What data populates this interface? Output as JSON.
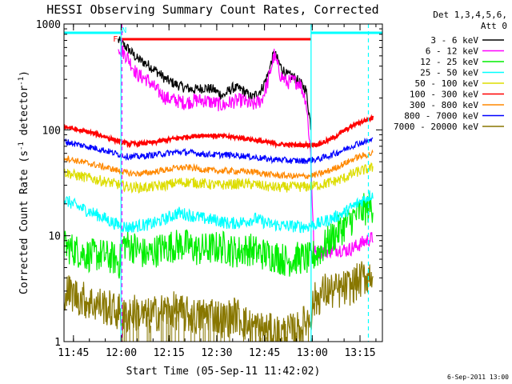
{
  "chart_data": {
    "type": "line",
    "title": "HESSI Observing Summary Count Rates, Corrected",
    "xlabel": "Start Time (05-Sep-11 11:42:02)",
    "ylabel_main": "Corrected Count Rate (s",
    "ylabel_sup1": "-1",
    "ylabel_mid": " detector",
    "ylabel_sup2": "-1",
    "ylabel_end": ")",
    "y_scale": "log",
    "ylim": [
      1,
      1000
    ],
    "y_ticks": [
      {
        "value": 1,
        "label": "1"
      },
      {
        "value": 10,
        "label": "10"
      },
      {
        "value": 100,
        "label": "100"
      },
      {
        "value": 1000,
        "label": "1000"
      }
    ],
    "x_unit": "minutes after 11:42:02",
    "xlim": [
      0,
      100
    ],
    "x_ticks": [
      {
        "value": 2.97,
        "label": "11:45"
      },
      {
        "value": 17.97,
        "label": "12:00"
      },
      {
        "value": 32.97,
        "label": "12:15"
      },
      {
        "value": 47.97,
        "label": "12:30"
      },
      {
        "value": 62.97,
        "label": "12:45"
      },
      {
        "value": 77.97,
        "label": "13:00"
      },
      {
        "value": 92.97,
        "label": "13:15"
      }
    ],
    "legend_header": [
      "Det 1,3,4,5,6,",
      "Att 0"
    ],
    "legend_position": "right",
    "series": [
      {
        "name": "3 - 6 keV",
        "color": "#000000",
        "x": [
          17,
          20,
          23,
          26,
          29,
          32,
          35,
          38,
          41,
          44,
          47,
          50,
          53,
          56,
          59,
          62,
          64,
          66,
          68,
          70,
          72,
          74,
          76,
          77.5
        ],
        "y": [
          700,
          590,
          470,
          420,
          360,
          300,
          270,
          250,
          240,
          250,
          240,
          210,
          250,
          240,
          200,
          240,
          330,
          540,
          400,
          330,
          320,
          280,
          240,
          110
        ]
      },
      {
        "name": "6 - 12 keV",
        "color": "#ff00ff",
        "x": [
          17,
          20,
          23,
          26,
          29,
          32,
          35,
          38,
          41,
          44,
          47,
          50,
          53,
          56,
          59,
          62,
          64,
          66,
          68,
          70,
          72,
          74,
          76,
          77.5,
          78.5,
          80,
          83,
          86,
          89,
          92,
          95,
          97
        ],
        "y": [
          620,
          480,
          330,
          300,
          240,
          200,
          190,
          180,
          190,
          190,
          180,
          170,
          185,
          190,
          170,
          190,
          280,
          510,
          330,
          280,
          290,
          280,
          190,
          60,
          7,
          7,
          7.2,
          7.5,
          7.3,
          8,
          9,
          9.5
        ]
      },
      {
        "name": "12 - 25 keV",
        "color": "#00ee00",
        "x": [
          0,
          4,
          8,
          12,
          16,
          17.5,
          18.5,
          22,
          26,
          30,
          34,
          38,
          42,
          46,
          50,
          54,
          58,
          62,
          66,
          70,
          74,
          77.5,
          78.5,
          81,
          84,
          87,
          90,
          93,
          97
        ],
        "y": [
          8,
          7.2,
          6.5,
          6.6,
          6,
          5.5,
          8.5,
          7.8,
          6.5,
          7.5,
          8,
          8.2,
          7.3,
          7.6,
          7.8,
          7,
          7.5,
          6.8,
          6.5,
          5.8,
          6.2,
          6,
          6.5,
          7.5,
          9.5,
          11.5,
          14,
          17,
          19
        ]
      },
      {
        "name": "25 - 50 keV",
        "color": "#00ffff",
        "x": [
          0,
          4,
          8,
          12,
          16,
          20,
          24,
          28,
          32,
          36,
          40,
          44,
          48,
          52,
          56,
          60,
          64,
          68,
          72,
          76,
          80,
          84,
          88,
          92,
          97
        ],
        "y": [
          22,
          19,
          17,
          15,
          13,
          12,
          12.5,
          13,
          14.5,
          16.5,
          15.5,
          14.5,
          14,
          13,
          13.5,
          14.5,
          13,
          12.5,
          12.3,
          12.2,
          13,
          14.5,
          16.5,
          20,
          25
        ]
      },
      {
        "name": "50 - 100 keV",
        "color": "#dddd00",
        "x": [
          0,
          4,
          8,
          12,
          16,
          20,
          24,
          28,
          32,
          36,
          40,
          44,
          48,
          52,
          56,
          60,
          64,
          68,
          72,
          76,
          80,
          84,
          88,
          92,
          97
        ],
        "y": [
          40,
          37,
          35,
          33,
          31,
          29,
          28.5,
          29,
          30,
          32,
          32,
          31,
          30,
          30.5,
          31,
          30.5,
          29,
          28.5,
          29,
          29,
          30,
          32,
          35,
          40,
          44
        ]
      },
      {
        "name": "100 - 300 keV",
        "color": "#ff0000",
        "x": [
          0,
          4,
          8,
          12,
          16,
          20,
          24,
          28,
          32,
          36,
          40,
          44,
          48,
          52,
          56,
          60,
          64,
          68,
          72,
          76,
          80,
          84,
          88,
          92,
          97
        ],
        "y": [
          108,
          100,
          95,
          88,
          80,
          74,
          74,
          76,
          80,
          84,
          87,
          89,
          88,
          86,
          84,
          80,
          76,
          73,
          72,
          72,
          73,
          82,
          98,
          115,
          130
        ]
      },
      {
        "name": "300 - 800 keV",
        "color": "#ff8800",
        "x": [
          0,
          4,
          8,
          12,
          16,
          20,
          24,
          28,
          32,
          36,
          40,
          44,
          48,
          52,
          56,
          60,
          64,
          68,
          72,
          76,
          80,
          84,
          88,
          92,
          97
        ],
        "y": [
          55,
          51,
          48,
          45,
          42,
          39,
          38.5,
          40,
          42,
          44,
          44,
          42,
          41,
          41,
          40.5,
          40,
          38,
          37,
          36.5,
          36.5,
          38,
          42,
          48,
          55,
          60
        ]
      },
      {
        "name": "800 - 7000 keV",
        "color": "#0000ff",
        "x": [
          0,
          4,
          8,
          12,
          16,
          20,
          24,
          28,
          32,
          36,
          40,
          44,
          48,
          52,
          56,
          60,
          64,
          68,
          72,
          76,
          80,
          84,
          88,
          92,
          97
        ],
        "y": [
          78,
          73,
          69,
          65,
          60,
          56,
          56,
          58,
          60,
          62,
          61,
          59,
          58,
          58,
          57,
          55,
          53,
          52,
          51,
          51,
          53,
          58,
          65,
          74,
          80
        ]
      },
      {
        "name": "7000 - 20000 keV",
        "color": "#887700",
        "x": [
          0,
          3,
          6,
          9,
          12,
          15,
          17.5,
          18.5,
          22,
          26,
          30,
          34,
          38,
          42,
          46,
          50,
          54,
          58,
          62,
          66,
          70,
          74,
          77.5,
          78.5,
          82,
          86,
          90,
          94,
          97
        ],
        "y": [
          3,
          2.8,
          2.5,
          2.3,
          2.2,
          2,
          1.9,
          1.7,
          1.9,
          1.7,
          1.9,
          2,
          1.8,
          1.7,
          1.9,
          1.6,
          1.8,
          1.4,
          1.3,
          1.2,
          1.2,
          1.3,
          1.8,
          2.4,
          3,
          3,
          3.3,
          4,
          4.5
        ]
      }
    ],
    "annotations": {
      "flag_bars": [
        {
          "label": "",
          "color": "#00ffff",
          "x_start": 0,
          "x_end": 17.9
        },
        {
          "label": "N",
          "color": "#00ffff",
          "x_start": 17.9,
          "x_end": 18.1
        },
        {
          "label": "F",
          "color": "#ff0000",
          "x_start": 17.9,
          "x_end": 77.6
        },
        {
          "label": "",
          "color": "#00ffff",
          "x_start": 77.6,
          "x_end": 100
        }
      ],
      "vlines": [
        {
          "x": 17.9,
          "color": "#00ffff",
          "style": "solid"
        },
        {
          "x": 18.2,
          "color": "#ff00ff",
          "style": "dashed"
        },
        {
          "x": 77.6,
          "color": "#00ffff",
          "style": "solid"
        },
        {
          "x": 95.6,
          "color": "#00ffff",
          "style": "dashed"
        }
      ]
    },
    "footer_date": "6-Sep-2011 13:00"
  }
}
